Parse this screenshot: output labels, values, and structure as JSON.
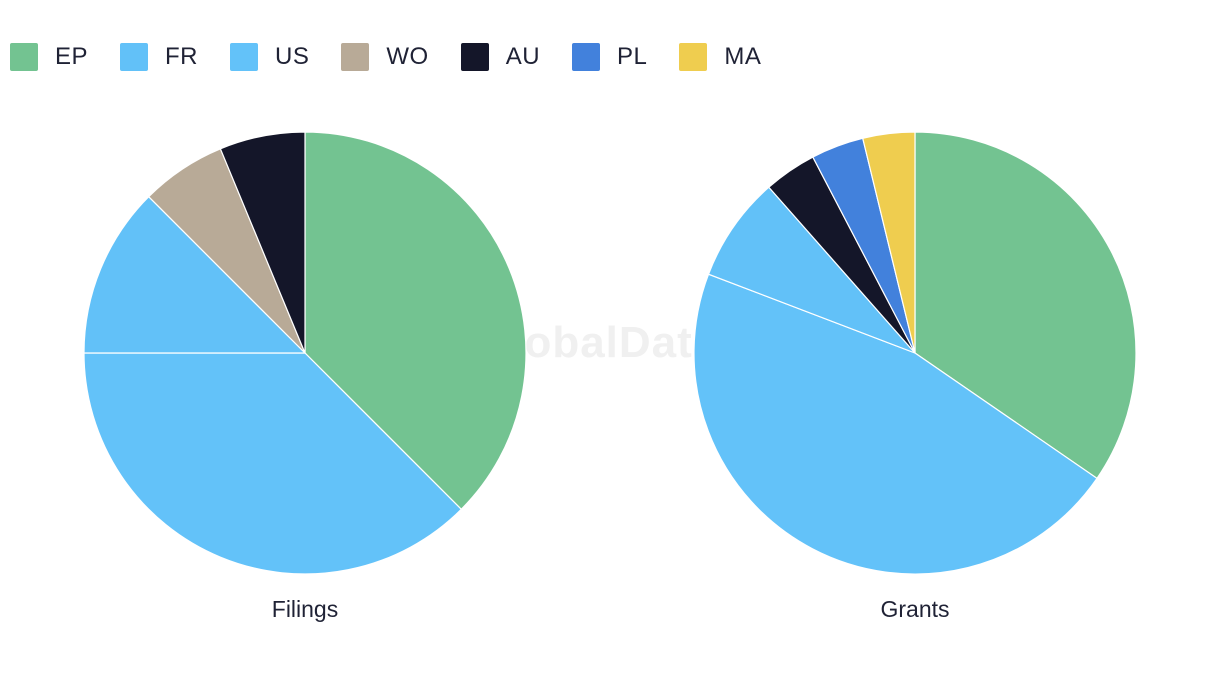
{
  "legend": [
    {
      "label": "EP",
      "color": "#73c391"
    },
    {
      "label": "FR",
      "color": "#62c1f8"
    },
    {
      "label": "US",
      "color": "#63c2f9"
    },
    {
      "label": "WO",
      "color": "#b8aa97"
    },
    {
      "label": "AU",
      "color": "#141629"
    },
    {
      "label": "PL",
      "color": "#4281dc"
    },
    {
      "label": "MA",
      "color": "#efcd4f"
    }
  ],
  "watermark": "GlobalData",
  "chart_data": [
    {
      "type": "pie",
      "title": "Filings",
      "slices": [
        {
          "label": "EP",
          "value": 37.5,
          "color": "#73c391"
        },
        {
          "label": "FR",
          "value": 0,
          "color": "#62c1f8"
        },
        {
          "label": "US",
          "value": 37.5,
          "color": "#63c2f9"
        },
        {
          "label": "FR",
          "value": 12.5,
          "color": "#62c1f8"
        },
        {
          "label": "WO",
          "value": 6.25,
          "color": "#b8aa97"
        },
        {
          "label": "AU",
          "value": 6.25,
          "color": "#141629"
        }
      ]
    },
    {
      "type": "pie",
      "title": "Grants",
      "slices": [
        {
          "label": "EP",
          "value": 34.6,
          "color": "#73c391"
        },
        {
          "label": "US",
          "value": 46.2,
          "color": "#63c2f9"
        },
        {
          "label": "FR",
          "value": 7.7,
          "color": "#62c1f8"
        },
        {
          "label": "AU",
          "value": 3.85,
          "color": "#141629"
        },
        {
          "label": "PL",
          "value": 3.85,
          "color": "#4281dc"
        },
        {
          "label": "MA",
          "value": 3.8,
          "color": "#efcd4f"
        }
      ]
    }
  ]
}
